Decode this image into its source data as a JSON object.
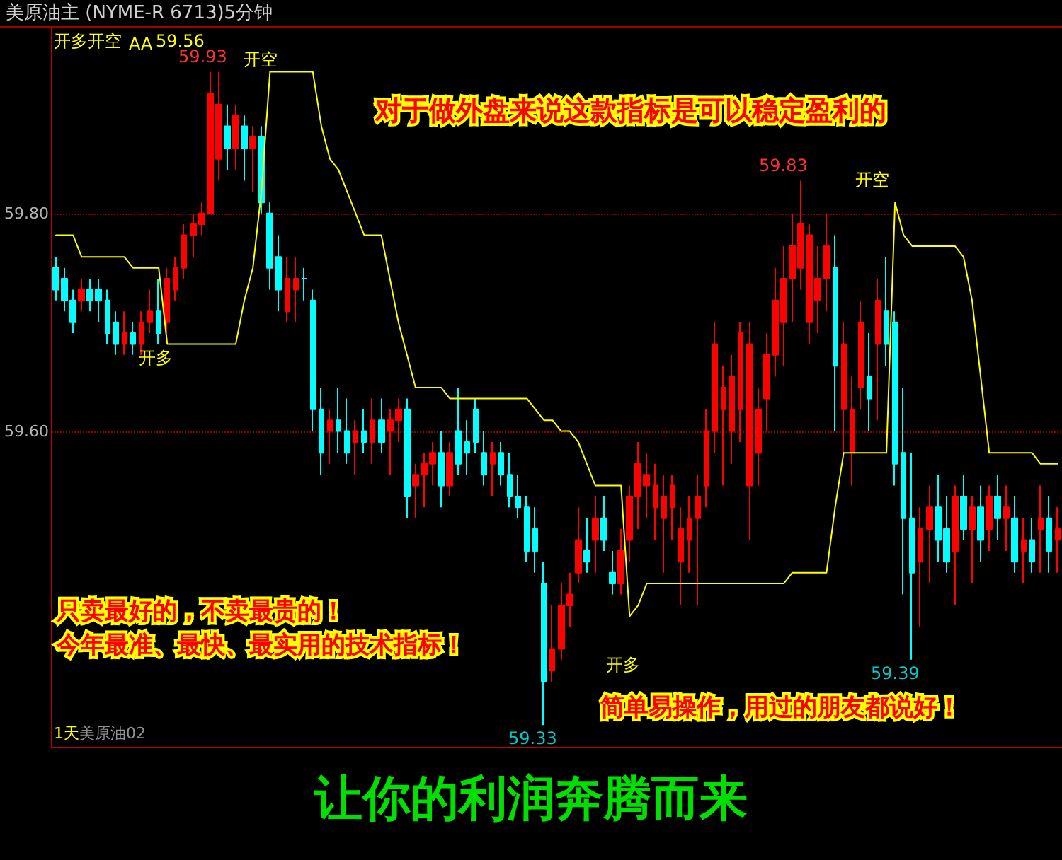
{
  "chart_data": {
    "type": "candlestick",
    "title": "美原油主 (NYME-R 6713)5分钟",
    "legend_title": "开多开空",
    "legend": "top left",
    "categories": [
      null,
      null,
      null,
      null,
      null,
      null,
      null,
      null,
      null,
      null,
      null,
      null,
      null,
      null,
      null,
      null,
      null,
      null,
      null,
      null,
      null,
      null,
      null,
      null,
      null,
      null,
      null,
      null,
      null,
      null,
      null,
      null,
      null,
      null,
      null,
      null,
      null,
      null,
      null,
      null,
      null,
      null,
      null,
      null,
      null,
      null,
      null,
      null,
      null,
      null,
      null,
      null,
      null,
      null,
      null,
      null,
      null,
      null,
      null,
      null,
      null,
      null,
      null,
      null,
      null,
      null,
      null,
      null,
      null,
      null,
      null,
      null,
      null,
      null,
      null,
      null,
      null,
      null,
      null,
      null,
      null,
      null,
      null,
      null,
      null,
      null,
      null,
      null,
      null,
      null,
      null,
      null,
      null,
      null,
      null,
      null,
      null,
      null,
      null,
      null,
      null,
      null,
      null,
      null,
      null,
      null,
      null,
      null,
      null,
      null,
      null,
      null,
      null,
      null,
      null,
      null,
      null,
      null
    ],
    "colors": [
      "#00ffff",
      "#00ffff",
      "#00ffff",
      "#ff0000",
      "#00ffff",
      "#00ffff",
      "#00ffff",
      "#00ffff",
      "#ff0000",
      "#00ffff",
      "#ff0000",
      "#ff0000",
      "#00ffff",
      "#ff0000",
      "#ff0000",
      "#ff0000",
      "#ff0000",
      "#ff0000",
      "#ff0000",
      "#ff0000",
      "#00ffff",
      "#ff0000",
      "#00ffff",
      "#ff0000",
      "#00ffff",
      "#00ffff",
      "#00ffff",
      "#ff0000",
      "#ff0000",
      "#00ffff",
      "#00ffff",
      "#00ffff",
      "#ff0000",
      "#00ffff",
      "#00ffff",
      "#ff0000",
      "#00ffff",
      "#ff0000",
      "#00ffff",
      "#ff0000",
      "#ff0000",
      "#00ffff",
      "#ff0000",
      "#ff0000",
      "#ff0000",
      "#00ffff",
      "#ff0000",
      "#00ffff",
      "#00ffff",
      "#00ffff",
      "#00ffff",
      "#ff0000",
      "#00ffff",
      "#00ffff",
      "#00ffff",
      "#00ffff",
      "#00ffff",
      "#00ffff",
      "#ff0000",
      "#ff0000",
      "#ff0000",
      "#ff0000",
      "#00ffff",
      "#ff0000",
      "#00ffff",
      "#00ffff",
      "#ff0000",
      "#ff0000",
      "#ff0000",
      "#ff0000",
      "#ff0000",
      "#ff0000",
      "#ff0000",
      "#ff0000",
      "#ff0000",
      "#ff0000",
      "#ff0000",
      "#ff0000",
      "#ff0000",
      "#ff0000",
      "#ff0000",
      "#ff0000",
      "#ff0000",
      "#ff0000",
      "#ff0000",
      "#ff0000",
      "#ff0000",
      "#ff0000",
      "#ff0000",
      "#ff0000",
      "#ff0000",
      "#00ffff",
      "#ff0000",
      "#ff0000",
      "#ff0000",
      "#00ffff",
      "#ff0000",
      "#00ffff",
      "#00ffff",
      "#00ffff",
      "#00ffff",
      "#ff0000",
      "#ff0000",
      "#00ffff",
      "#00ffff",
      "#ff0000",
      "#00ffff",
      "#ff0000",
      "#00ffff",
      "#ff0000",
      "#00ffff",
      "#ff0000",
      "#00ffff",
      "#ff0000",
      "#00ffff",
      "#ff0000",
      "#00ffff",
      "#ff0000"
    ],
    "ohlc": [
      [
        59.75,
        59.76,
        59.72,
        59.73
      ],
      [
        59.74,
        59.75,
        59.71,
        59.72
      ],
      [
        59.72,
        59.73,
        59.69,
        59.7
      ],
      [
        59.72,
        59.74,
        59.71,
        59.73
      ],
      [
        59.73,
        59.74,
        59.71,
        59.72
      ],
      [
        59.73,
        59.74,
        59.7,
        59.72
      ],
      [
        59.72,
        59.73,
        59.68,
        59.69
      ],
      [
        59.7,
        59.71,
        59.67,
        59.68
      ],
      [
        59.68,
        59.71,
        59.67,
        59.69
      ],
      [
        59.69,
        59.7,
        59.67,
        59.68
      ],
      [
        59.68,
        59.71,
        59.67,
        59.7
      ],
      [
        59.7,
        59.73,
        59.69,
        59.71
      ],
      [
        59.71,
        59.74,
        59.68,
        59.69
      ],
      [
        59.7,
        59.75,
        59.69,
        59.74
      ],
      [
        59.73,
        59.76,
        59.72,
        59.75
      ],
      [
        59.75,
        59.79,
        59.74,
        59.78
      ],
      [
        59.78,
        59.8,
        59.76,
        59.79
      ],
      [
        59.79,
        59.81,
        59.78,
        59.8
      ],
      [
        59.8,
        59.93,
        59.8,
        59.91
      ],
      [
        59.85,
        59.93,
        59.83,
        59.9
      ],
      [
        59.88,
        59.9,
        59.84,
        59.86
      ],
      [
        59.86,
        59.9,
        59.84,
        59.89
      ],
      [
        59.88,
        59.89,
        59.83,
        59.86
      ],
      [
        59.86,
        59.88,
        59.82,
        59.87
      ],
      [
        59.87,
        59.88,
        59.8,
        59.81
      ],
      [
        59.8,
        59.81,
        59.73,
        59.75
      ],
      [
        59.76,
        59.78,
        59.71,
        59.73
      ],
      [
        59.71,
        59.76,
        59.7,
        59.74
      ],
      [
        59.73,
        59.76,
        59.7,
        59.74
      ],
      [
        59.74,
        59.75,
        59.72,
        59.74
      ],
      [
        59.72,
        59.73,
        59.6,
        59.62
      ],
      [
        59.62,
        59.64,
        59.56,
        59.58
      ],
      [
        59.6,
        59.62,
        59.57,
        59.61
      ],
      [
        59.61,
        59.64,
        59.58,
        59.6
      ],
      [
        59.6,
        59.63,
        59.57,
        59.58
      ],
      [
        59.59,
        59.61,
        59.56,
        59.6
      ],
      [
        59.6,
        59.62,
        59.58,
        59.59
      ],
      [
        59.59,
        59.63,
        59.57,
        59.61
      ],
      [
        59.61,
        59.63,
        59.58,
        59.59
      ],
      [
        59.6,
        59.62,
        59.56,
        59.61
      ],
      [
        59.61,
        59.63,
        59.59,
        59.62
      ],
      [
        59.62,
        59.63,
        59.52,
        59.54
      ],
      [
        59.55,
        59.57,
        59.52,
        59.56
      ],
      [
        59.56,
        59.58,
        59.53,
        59.57
      ],
      [
        59.57,
        59.59,
        59.55,
        59.58
      ],
      [
        59.58,
        59.6,
        59.53,
        59.55
      ],
      [
        59.55,
        59.59,
        59.54,
        59.58
      ],
      [
        59.6,
        59.64,
        59.56,
        59.57
      ],
      [
        59.59,
        59.61,
        59.56,
        59.58
      ],
      [
        59.62,
        59.63,
        59.58,
        59.59
      ],
      [
        59.58,
        59.6,
        59.55,
        59.56
      ],
      [
        59.57,
        59.59,
        59.54,
        59.58
      ],
      [
        59.58,
        59.59,
        59.55,
        59.56
      ],
      [
        59.56,
        59.58,
        59.53,
        59.54
      ],
      [
        59.54,
        59.56,
        59.52,
        59.53
      ],
      [
        59.53,
        59.54,
        59.48,
        59.49
      ],
      [
        59.51,
        59.53,
        59.47,
        59.49
      ],
      [
        59.46,
        59.48,
        59.33,
        59.37
      ],
      [
        59.38,
        59.44,
        59.37,
        59.4
      ],
      [
        59.4,
        59.46,
        59.39,
        59.44
      ],
      [
        59.44,
        59.47,
        59.42,
        59.45
      ],
      [
        59.47,
        59.53,
        59.46,
        59.5
      ],
      [
        59.49,
        59.52,
        59.47,
        59.48
      ],
      [
        59.5,
        59.54,
        59.47,
        59.52
      ],
      [
        59.52,
        59.54,
        59.49,
        59.5
      ],
      [
        59.47,
        59.49,
        59.45,
        59.46
      ],
      [
        59.46,
        59.51,
        59.45,
        59.49
      ],
      [
        59.5,
        59.55,
        59.48,
        59.54
      ],
      [
        59.54,
        59.59,
        59.51,
        59.57
      ],
      [
        59.55,
        59.58,
        59.52,
        59.56
      ],
      [
        59.53,
        59.57,
        59.5,
        59.55
      ],
      [
        59.52,
        59.56,
        59.47,
        59.54
      ],
      [
        59.53,
        59.56,
        59.5,
        59.55
      ],
      [
        59.48,
        59.53,
        59.44,
        59.51
      ],
      [
        59.5,
        59.54,
        59.47,
        59.52
      ],
      [
        59.52,
        59.56,
        59.44,
        59.54
      ],
      [
        59.55,
        59.62,
        59.53,
        59.6
      ],
      [
        59.6,
        59.7,
        59.58,
        59.68
      ],
      [
        59.62,
        59.66,
        59.55,
        59.64
      ],
      [
        59.6,
        59.67,
        59.57,
        59.65
      ],
      [
        59.62,
        59.7,
        59.59,
        59.69
      ],
      [
        59.55,
        59.7,
        59.5,
        59.68
      ],
      [
        59.58,
        59.64,
        59.55,
        59.62
      ],
      [
        59.63,
        59.69,
        59.6,
        59.67
      ],
      [
        59.67,
        59.75,
        59.65,
        59.72
      ],
      [
        59.7,
        59.77,
        59.66,
        59.74
      ],
      [
        59.74,
        59.8,
        59.7,
        59.77
      ],
      [
        59.75,
        59.83,
        59.73,
        59.79
      ],
      [
        59.7,
        59.79,
        59.68,
        59.78
      ],
      [
        59.72,
        59.77,
        59.69,
        59.74
      ],
      [
        59.74,
        59.8,
        59.71,
        59.77
      ],
      [
        59.75,
        59.78,
        59.6,
        59.66
      ],
      [
        59.62,
        59.7,
        59.58,
        59.68
      ],
      [
        59.58,
        59.65,
        59.55,
        59.62
      ],
      [
        59.64,
        59.72,
        59.62,
        59.7
      ],
      [
        59.65,
        59.69,
        59.6,
        59.63
      ],
      [
        59.68,
        59.74,
        59.61,
        59.72
      ],
      [
        59.71,
        59.76,
        59.66,
        59.68
      ],
      [
        59.7,
        59.71,
        59.55,
        59.57
      ],
      [
        59.58,
        59.64,
        59.45,
        59.52
      ],
      [
        59.52,
        59.58,
        59.39,
        59.47
      ],
      [
        59.48,
        59.53,
        59.42,
        59.51
      ],
      [
        59.51,
        59.55,
        59.46,
        59.53
      ],
      [
        59.53,
        59.56,
        59.48,
        59.5
      ],
      [
        59.51,
        59.54,
        59.47,
        59.48
      ],
      [
        59.49,
        59.55,
        59.44,
        59.54
      ],
      [
        59.54,
        59.56,
        59.5,
        59.51
      ],
      [
        59.51,
        59.54,
        59.46,
        59.53
      ],
      [
        59.53,
        59.55,
        59.48,
        59.5
      ],
      [
        59.51,
        59.55,
        59.49,
        59.54
      ],
      [
        59.54,
        59.56,
        59.5,
        59.52
      ],
      [
        59.52,
        59.55,
        59.49,
        59.53
      ],
      [
        59.52,
        59.54,
        59.47,
        59.48
      ],
      [
        59.49,
        59.52,
        59.46,
        59.5
      ],
      [
        59.5,
        59.52,
        59.47,
        59.48
      ],
      [
        59.51,
        59.55,
        59.47,
        59.52
      ],
      [
        59.52,
        59.54,
        59.47,
        59.49
      ],
      [
        59.5,
        59.53,
        59.47,
        59.51
      ]
    ],
    "series": [
      {
        "type": "line",
        "name": "AA",
        "color": "#ffff00",
        "values": [
          59.78,
          59.78,
          59.78,
          59.76,
          59.76,
          59.76,
          59.76,
          59.76,
          59.76,
          59.75,
          59.75,
          59.75,
          59.75,
          59.68,
          59.68,
          59.68,
          59.68,
          59.68,
          59.68,
          59.68,
          59.68,
          59.68,
          59.72,
          59.75,
          59.82,
          59.93,
          59.93,
          59.93,
          59.93,
          59.93,
          59.93,
          59.88,
          59.85,
          59.84,
          59.82,
          59.8,
          59.78,
          59.78,
          59.78,
          59.74,
          59.7,
          59.67,
          59.64,
          59.64,
          59.64,
          59.64,
          59.63,
          59.63,
          59.63,
          59.63,
          59.63,
          59.63,
          59.63,
          59.63,
          59.63,
          59.63,
          59.62,
          59.61,
          59.61,
          59.6,
          59.6,
          59.59,
          59.57,
          59.55,
          59.55,
          59.55,
          59.55,
          59.43,
          59.44,
          59.46,
          59.46,
          59.46,
          59.46,
          59.46,
          59.46,
          59.46,
          59.46,
          59.46,
          59.46,
          59.46,
          59.46,
          59.46,
          59.46,
          59.46,
          59.46,
          59.46,
          59.47,
          59.47,
          59.47,
          59.47,
          59.47,
          59.53,
          59.58,
          59.58,
          59.58,
          59.58,
          59.58,
          59.58,
          59.81,
          59.78,
          59.77,
          59.77,
          59.77,
          59.77,
          59.77,
          59.77,
          59.76,
          59.72,
          59.65,
          59.58,
          59.58,
          59.58,
          59.58,
          59.58,
          59.58,
          59.57,
          59.57,
          59.57
        ]
      }
    ],
    "ylim": [
      59.31,
      59.97
    ],
    "yticks": [
      {
        "value": 59.6,
        "label": "59.60"
      },
      {
        "value": 59.8,
        "label": "59.80"
      }
    ],
    "grid": "y",
    "tick_labels": "y",
    "annotations": [
      "59.56",
      "59.93",
      "开空",
      "开多",
      "59.83",
      "开空",
      "开多",
      "59.33",
      "59.39",
      "对于做外盘来说这款指标是可以稳定盈利的",
      "只卖最好的，不卖最贵的！",
      "今年最准、最快、最实用的技术指标！",
      "简单易操作，用过的朋友都说好！",
      "1天",
      "美原油02",
      "让你的利润奔腾而来"
    ]
  }
}
